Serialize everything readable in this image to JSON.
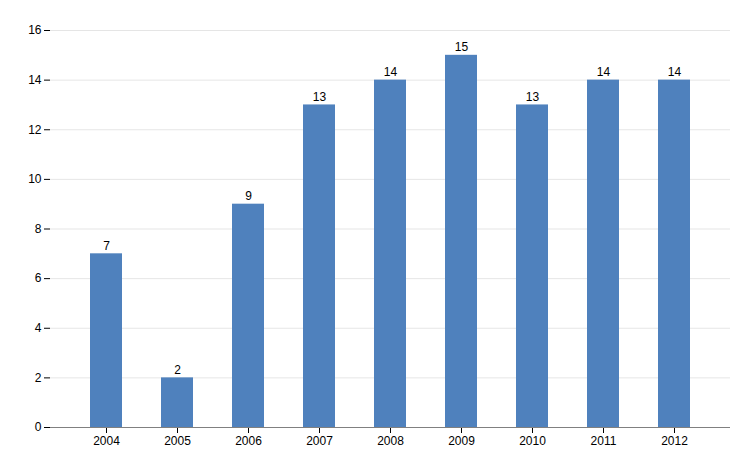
{
  "chart_data": {
    "type": "bar",
    "categories": [
      "2004",
      "2005",
      "2006",
      "2007",
      "2008",
      "2009",
      "2010",
      "2011",
      "2012"
    ],
    "values": [
      7,
      2,
      9,
      13,
      14,
      15,
      13,
      14,
      14
    ],
    "color": "#4F81BD",
    "ylim": [
      0,
      16
    ],
    "yticks": [
      0,
      2,
      4,
      6,
      8,
      10,
      12,
      14,
      16
    ],
    "grid": true,
    "data_labels": true
  }
}
